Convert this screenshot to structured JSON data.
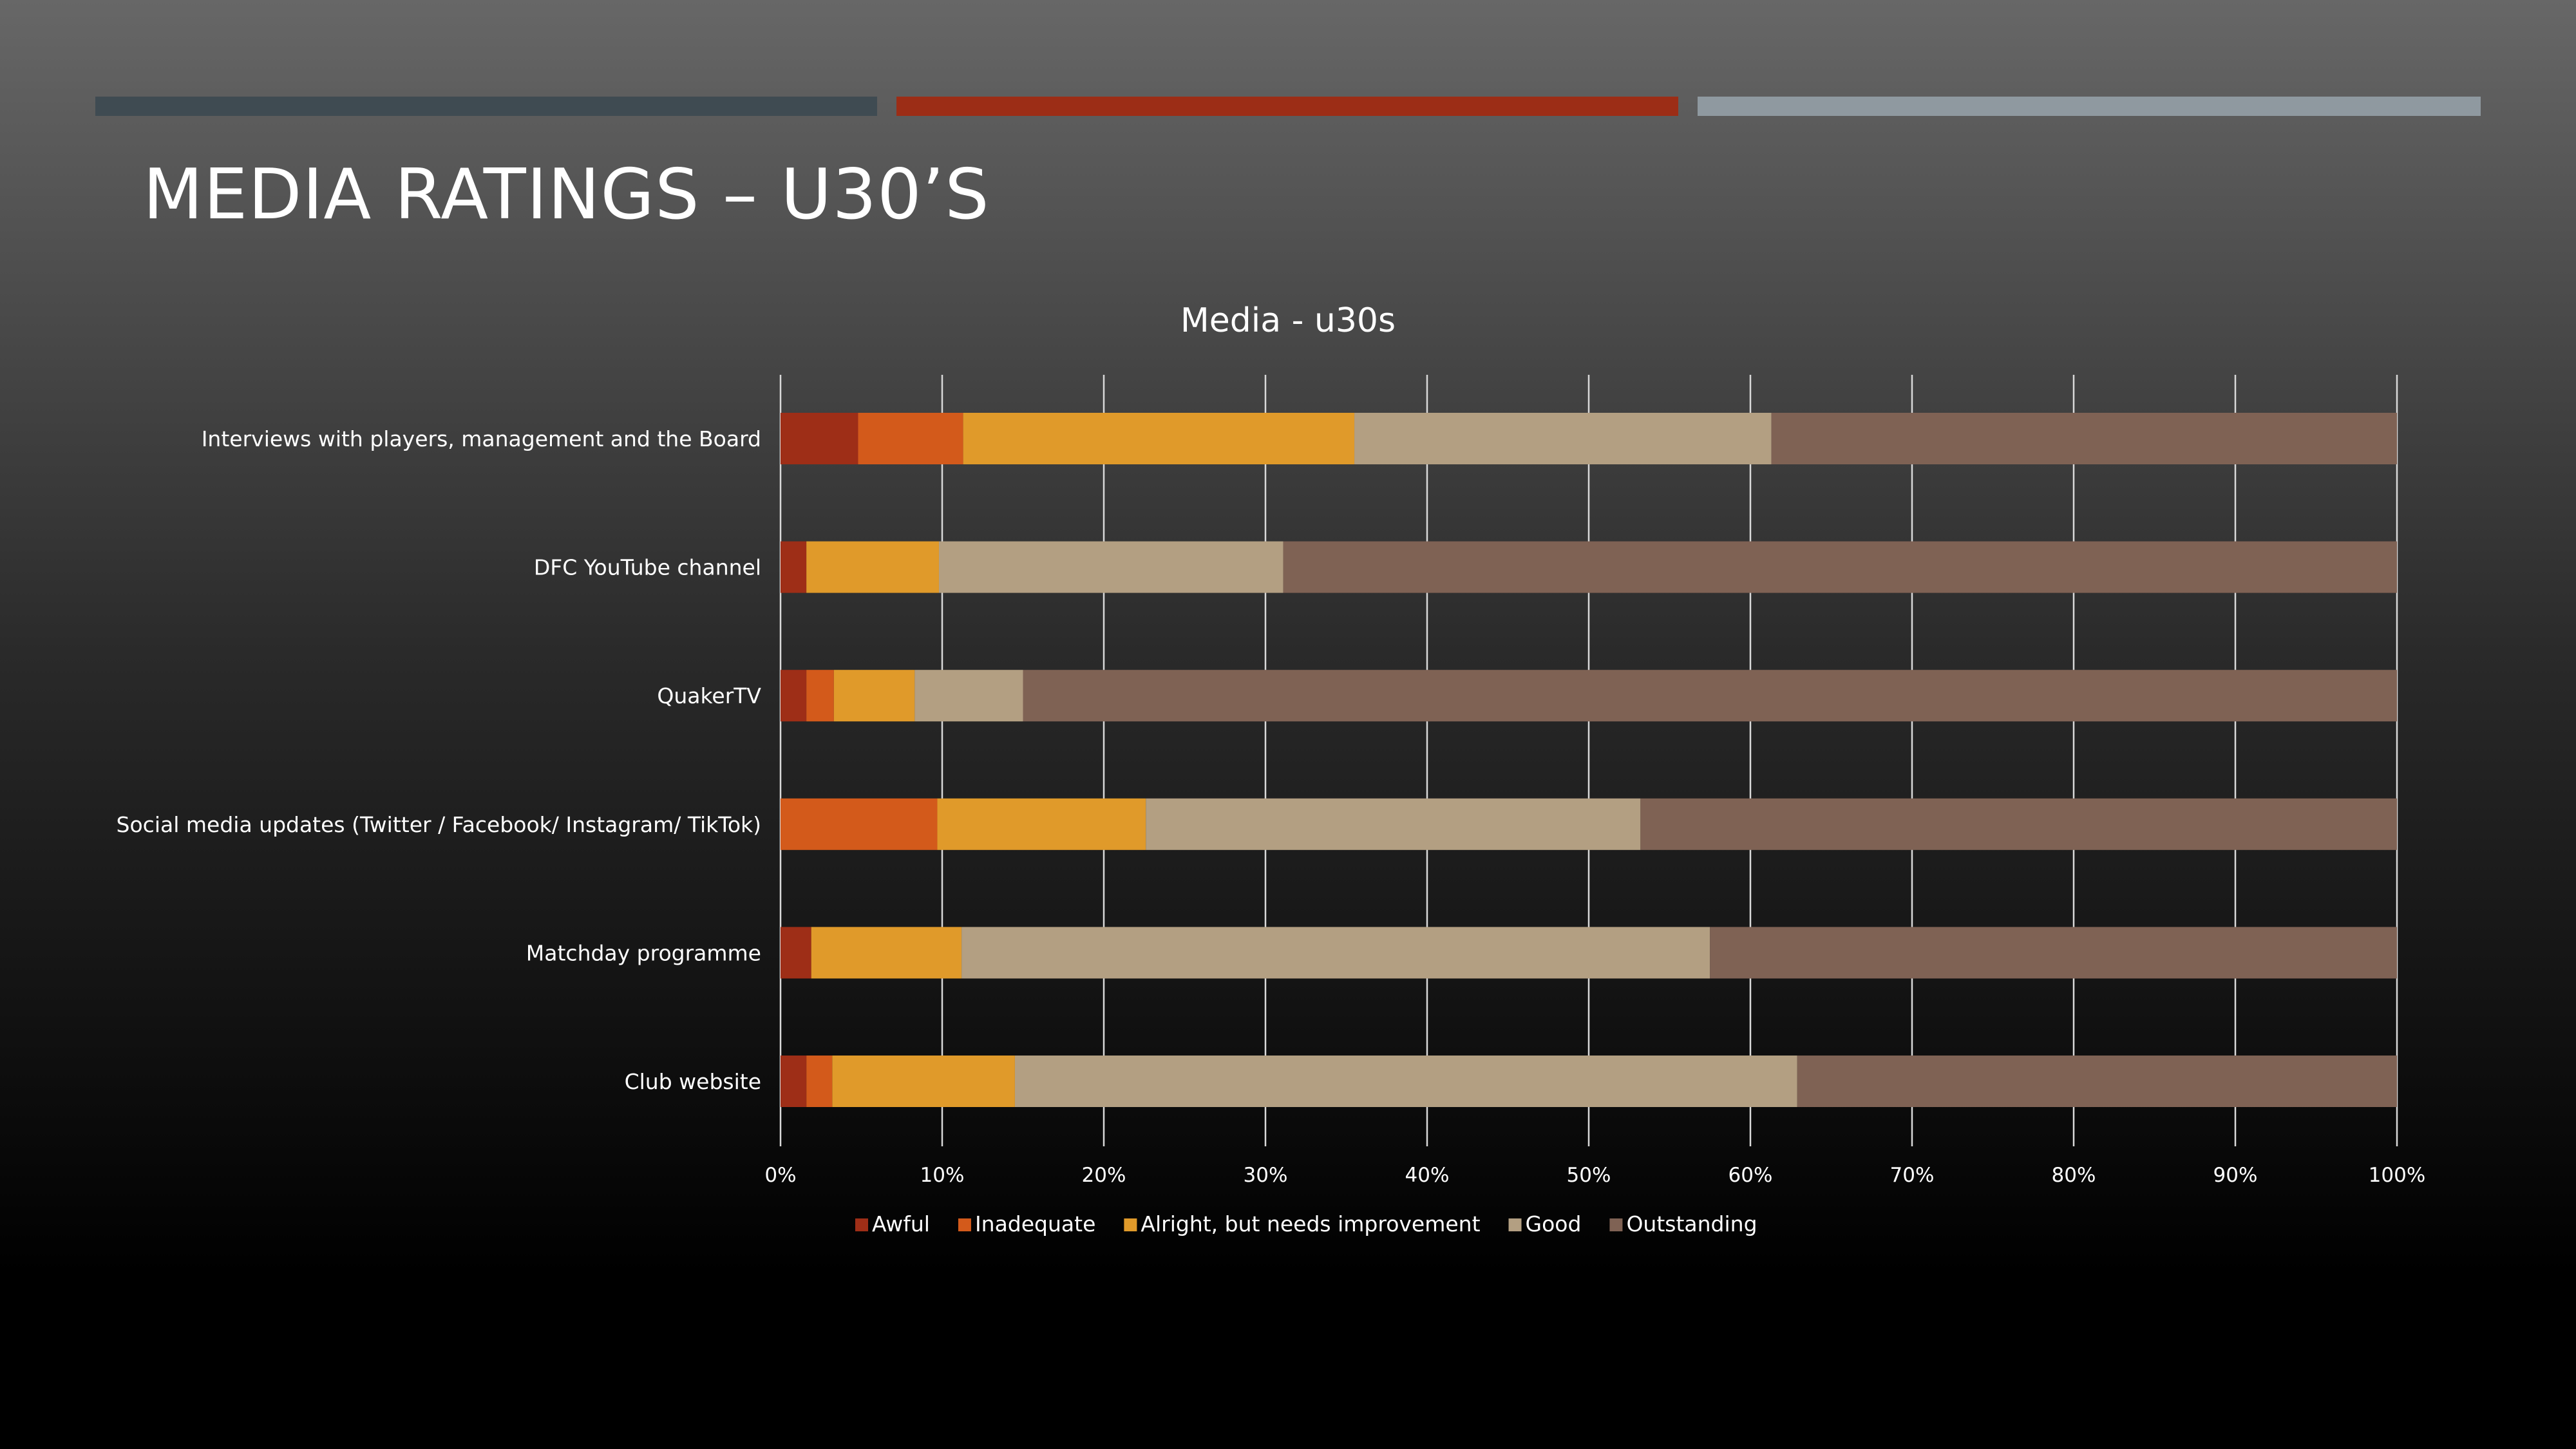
{
  "slide": {
    "title": "MEDIA RATINGS – U30’S",
    "accent_colors": [
      "#3f4b52",
      "#9c2d16",
      "#8f99a0"
    ]
  },
  "chart_data": {
    "type": "bar",
    "orientation": "horizontal",
    "stacked": "percent",
    "title": "Media - u30s",
    "xlabel": "",
    "ylabel": "",
    "xlim": [
      0,
      100
    ],
    "x_ticks": [
      "0%",
      "10%",
      "20%",
      "30%",
      "40%",
      "50%",
      "60%",
      "70%",
      "80%",
      "90%",
      "100%"
    ],
    "grid": true,
    "legend_position": "bottom",
    "categories": [
      "Interviews with players, management and the Board",
      "DFC YouTube channel",
      "QuakerTV",
      "Social media updates (Twitter / Facebook/ Instagram/ TikTok)",
      "Matchday programme",
      "Club website"
    ],
    "series": [
      {
        "name": "Awful",
        "color": "#9e2e17",
        "values": [
          4.8,
          1.6,
          1.6,
          0,
          1.9,
          1.6
        ]
      },
      {
        "name": "Inadequate",
        "color": "#d35a1b",
        "values": [
          6.5,
          0,
          1.7,
          9.7,
          0,
          1.6
        ]
      },
      {
        "name": "Alright, but needs improvement",
        "color": "#e09a2a",
        "values": [
          24.2,
          8.2,
          5.0,
          12.9,
          9.3,
          11.3
        ]
      },
      {
        "name": "Good",
        "color": "#b39f82",
        "values": [
          25.8,
          21.3,
          6.7,
          30.6,
          46.3,
          48.4
        ]
      },
      {
        "name": "Outstanding",
        "color": "#7f6254",
        "values": [
          38.7,
          68.9,
          85.0,
          46.8,
          42.5,
          37.1
        ]
      }
    ]
  }
}
